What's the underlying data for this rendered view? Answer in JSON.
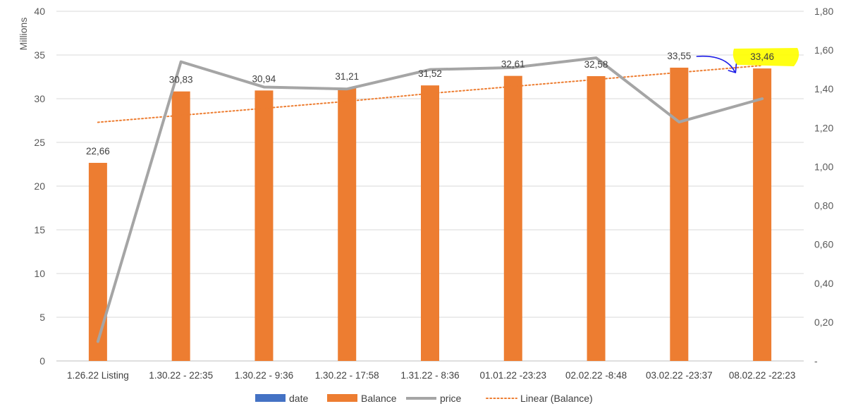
{
  "chart_data": {
    "type": "bar",
    "categories": [
      "1.26.22 Listing",
      "1.30.22 - 22:35",
      "1.30.22 - 9:36",
      "1.30.22 - 17:58",
      "1.31.22 - 8:36",
      "01.01.22 -23:23",
      "02.02.22 -8:48",
      "03.02.22 -23:37",
      "08.02.22 -22:23"
    ],
    "series": [
      {
        "name": "date",
        "type": "bar",
        "axis": "left",
        "color": "#4472C4",
        "values": [
          0,
          0,
          0,
          0,
          0,
          0,
          0,
          0,
          0
        ]
      },
      {
        "name": "Balance",
        "type": "bar",
        "axis": "left",
        "color": "#ED7D31",
        "values": [
          22.66,
          30.83,
          30.94,
          31.21,
          31.52,
          32.61,
          32.58,
          33.55,
          33.46
        ]
      },
      {
        "name": "price",
        "type": "line",
        "axis": "right",
        "color": "#A5A5A5",
        "values": [
          0.1,
          1.54,
          1.41,
          1.4,
          1.5,
          1.51,
          1.56,
          1.23,
          1.35
        ]
      },
      {
        "name": "Linear (Balance)",
        "type": "trendline",
        "axis": "left",
        "color": "#ED7D31",
        "style": "dotted",
        "values": [
          27.3,
          28.1,
          28.9,
          29.7,
          30.6,
          31.4,
          32.2,
          33.0,
          33.8
        ]
      }
    ],
    "data_labels": [
      "22,66",
      "30,83",
      "30,94",
      "31,21",
      "31,52",
      "32,61",
      "32,58",
      "33,55",
      "33,46"
    ],
    "y_left": {
      "label": "Millions",
      "ylim": [
        0,
        40
      ],
      "ticks": [
        "0",
        "5",
        "10",
        "15",
        "20",
        "25",
        "30",
        "35",
        "40"
      ]
    },
    "y_right": {
      "ylim": [
        0,
        1.8
      ],
      "ticks": [
        "-",
        "0,20",
        "0,40",
        "0,60",
        "0,80",
        "1,00",
        "1,20",
        "1,40",
        "1,60",
        "1,80"
      ]
    },
    "legend": {
      "position": "bottom",
      "items": [
        "date",
        "Balance",
        "price",
        "Linear (Balance)"
      ]
    },
    "grid": true,
    "annotation": {
      "highlight_label_index": 8,
      "highlight_color": "#FFFF00",
      "arrow_color": "#1A1AE6"
    }
  }
}
